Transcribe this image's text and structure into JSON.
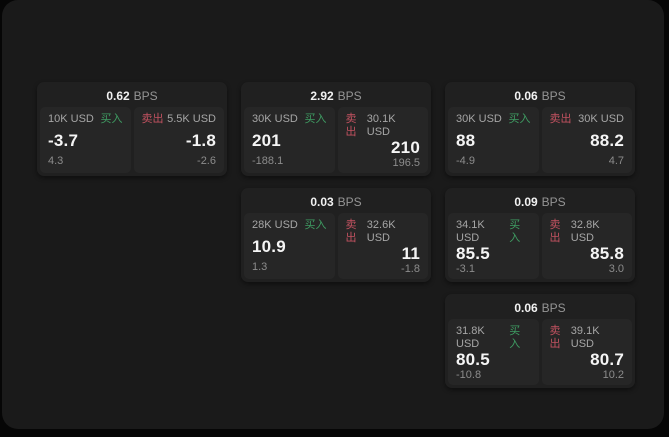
{
  "labels": {
    "bps_suffix": "BPS",
    "buy": "买入",
    "sell": "卖出"
  },
  "colors": {
    "background": "#060606",
    "surface": "#1a1a1a",
    "card": "#202020",
    "panel": "#262626",
    "text_primary": "#f5f5f5",
    "text_secondary": "#a6a6a6",
    "text_muted": "#8c8c8c",
    "buy_green": "#3f9d63",
    "sell_red": "#c25260"
  },
  "cards": [
    {
      "bps": "0.62",
      "buy": {
        "amount": "10K USD",
        "price": "-3.7",
        "delta": "4.3"
      },
      "sell": {
        "amount": "5.5K USD",
        "price": "-1.8",
        "delta": "-2.6"
      }
    },
    {
      "bps": "2.92",
      "buy": {
        "amount": "30K USD",
        "price": "201",
        "delta": "-188.1"
      },
      "sell": {
        "amount": "30.1K USD",
        "price": "210",
        "delta": "196.5"
      }
    },
    {
      "bps": "0.06",
      "buy": {
        "amount": "30K USD",
        "price": "88",
        "delta": "-4.9"
      },
      "sell": {
        "amount": "30K USD",
        "price": "88.2",
        "delta": "4.7"
      }
    },
    {
      "bps": "0.03",
      "buy": {
        "amount": "28K USD",
        "price": "10.9",
        "delta": "1.3"
      },
      "sell": {
        "amount": "32.6K USD",
        "price": "11",
        "delta": "-1.8"
      }
    },
    {
      "bps": "0.09",
      "buy": {
        "amount": "34.1K USD",
        "price": "85.5",
        "delta": "-3.1"
      },
      "sell": {
        "amount": "32.8K USD",
        "price": "85.8",
        "delta": "3.0"
      }
    },
    {
      "bps": "0.06",
      "buy": {
        "amount": "31.8K USD",
        "price": "80.5",
        "delta": "-10.8"
      },
      "sell": {
        "amount": "39.1K USD",
        "price": "80.7",
        "delta": "10.2"
      }
    }
  ]
}
